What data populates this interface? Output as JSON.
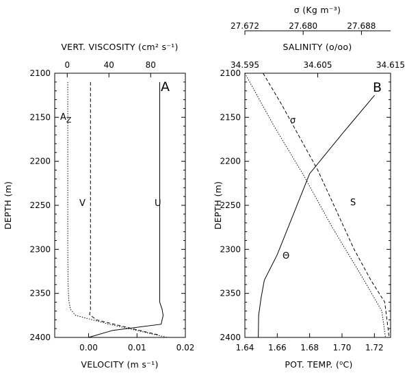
{
  "chart_data": [
    {
      "type": "line",
      "panel_label": "A",
      "ylabel": "DEPTH (m)",
      "ylim": [
        2400,
        2100
      ],
      "yticks": [
        2100,
        2150,
        2200,
        2250,
        2300,
        2350,
        2400
      ],
      "xlabel": "VELOCITY (m s⁻¹)",
      "xlim": [
        -0.007,
        0.02
      ],
      "xticks": [
        0.0,
        0.01,
        0.02
      ],
      "xticklabels": [
        "0.00",
        "0.01",
        "0.02"
      ],
      "top_axis": {
        "label": "VERT. VISCOSITY (cm² s⁻¹)",
        "xlim": [
          -12,
          113.3
        ],
        "xticks": [
          0,
          40,
          80
        ],
        "xticklabels": [
          "0",
          "40",
          "80"
        ]
      },
      "series": [
        {
          "name": "U",
          "axis": "bottom",
          "style": "solid",
          "x": [
            0.0147,
            0.0147,
            0.0147,
            0.0152,
            0.0154,
            0.015,
            0.005,
            0.0
          ],
          "y": [
            2110,
            2200,
            2360,
            2368,
            2375,
            2385,
            2392,
            2400
          ]
        },
        {
          "name": "V",
          "axis": "bottom",
          "style": "dashed",
          "x": [
            0.0004,
            0.0004,
            0.0004,
            0.0002,
            0.0016,
            0.006,
            0.0105,
            0.0143
          ],
          "y": [
            2110,
            2250,
            2368,
            2374,
            2380,
            2386,
            2392,
            2397
          ]
        },
        {
          "name": "A",
          "subscript": "Z",
          "axis": "top",
          "style": "dotted",
          "x": [
            0.5,
            0.5,
            0.8,
            1.5,
            3,
            8,
            40,
            70,
            96
          ],
          "y": [
            2110,
            2300,
            2340,
            2358,
            2368,
            2375,
            2385,
            2393,
            2400
          ]
        }
      ]
    },
    {
      "type": "line",
      "panel_label": "B",
      "ylabel": "DEPTH (m)",
      "ylim": [
        2400,
        2100
      ],
      "yticks": [
        2100,
        2150,
        2200,
        2250,
        2300,
        2350,
        2400
      ],
      "xlabel": "POT. TEMP. (⁰C)",
      "xlim": [
        1.64,
        1.73
      ],
      "xticks": [
        1.64,
        1.66,
        1.68,
        1.7,
        1.72
      ],
      "xticklabels": [
        "1.64",
        "1.66",
        "1.68",
        "1.70",
        "1.72"
      ],
      "top_axis": {
        "label": "SALINITY (o/oo)",
        "xlim": [
          34.595,
          34.615
        ],
        "xticks": [
          34.595,
          34.605,
          34.615
        ],
        "xticklabels": [
          "34.595",
          "34.605",
          "34.615"
        ]
      },
      "top_axis_2": {
        "label": "σ (Kg m⁻³)",
        "xlim": [
          27.672,
          27.692
        ],
        "xticks": [
          27.672,
          27.68,
          27.688
        ],
        "xticklabels": [
          "27.672",
          "27.680",
          "27.688"
        ]
      },
      "series": [
        {
          "name": "Θ",
          "axis": "bottom",
          "style": "solid",
          "x": [
            1.7201,
            1.7,
            1.68,
            1.66,
            1.652,
            1.65,
            1.6485,
            1.6483
          ],
          "y": [
            2125,
            2169,
            2214,
            2306,
            2335,
            2355,
            2375,
            2400
          ]
        },
        {
          "name": "S",
          "axis": "top",
          "style": "dashed",
          "x": [
            34.5975,
            34.6,
            34.605,
            34.61,
            34.6123,
            34.6142,
            34.6148
          ],
          "y": [
            2100,
            2135,
            2210,
            2300,
            2335,
            2360,
            2400
          ]
        },
        {
          "name": "σ",
          "axis": "top2",
          "style": "dotted",
          "x": [
            27.672,
            27.676,
            27.68,
            27.684,
            27.688,
            27.6908,
            27.6913
          ],
          "y": [
            2100,
            2160,
            2215,
            2275,
            2330,
            2370,
            2400
          ]
        }
      ]
    }
  ]
}
